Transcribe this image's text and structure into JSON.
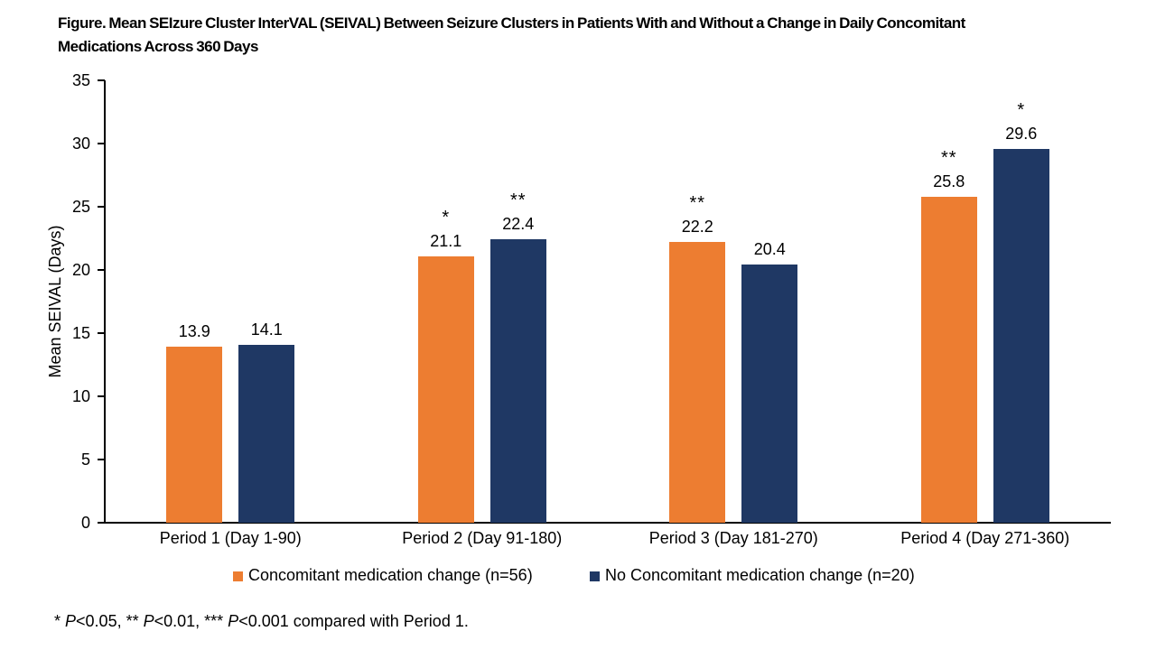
{
  "figure": {
    "title_lines": [
      "Figure. Mean SEIzure Cluster InterVAL (SEIVAL) Between Seizure Clusters in Patients With and Without a Change in Daily Concomitant",
      "Medications Across 360 Days"
    ]
  },
  "chart_data": {
    "type": "bar",
    "title": "Figure. Mean SEIzure Cluster InterVAL (SEIVAL) Between Seizure Clusters in Patients With and Without a Change in Daily Concomitant Medications Across 360 Days",
    "xlabel": "",
    "ylabel": "Mean SEIVAL (Days)",
    "ylim": [
      0,
      35
    ],
    "ytick_step": 5,
    "grid": false,
    "legend_position": "bottom",
    "categories": [
      "Period 1 (Day 1-90)",
      "Period 2 (Day 91-180)",
      "Period 3 (Day 181-270)",
      "Period 4 (Day 271-360)"
    ],
    "series": [
      {
        "name": "Concomitant medication change (n=56)",
        "color": "#ED7D31",
        "values": [
          13.9,
          21.1,
          22.2,
          25.8
        ],
        "significance": [
          "",
          "*",
          "**",
          "**"
        ]
      },
      {
        "name": "No Concomitant medication change (n=20)",
        "color": "#1F3864",
        "values": [
          14.1,
          22.4,
          20.4,
          29.6
        ],
        "significance": [
          "",
          "**",
          "",
          "*"
        ]
      }
    ]
  },
  "footnote": {
    "segments": [
      {
        "text": "* ",
        "italic": false
      },
      {
        "text": "P",
        "italic": true
      },
      {
        "text": "<0.05, ** ",
        "italic": false
      },
      {
        "text": "P",
        "italic": true
      },
      {
        "text": "<0.01, *** ",
        "italic": false
      },
      {
        "text": "P",
        "italic": true
      },
      {
        "text": "<0.001 compared with Period 1.",
        "italic": false
      }
    ]
  }
}
